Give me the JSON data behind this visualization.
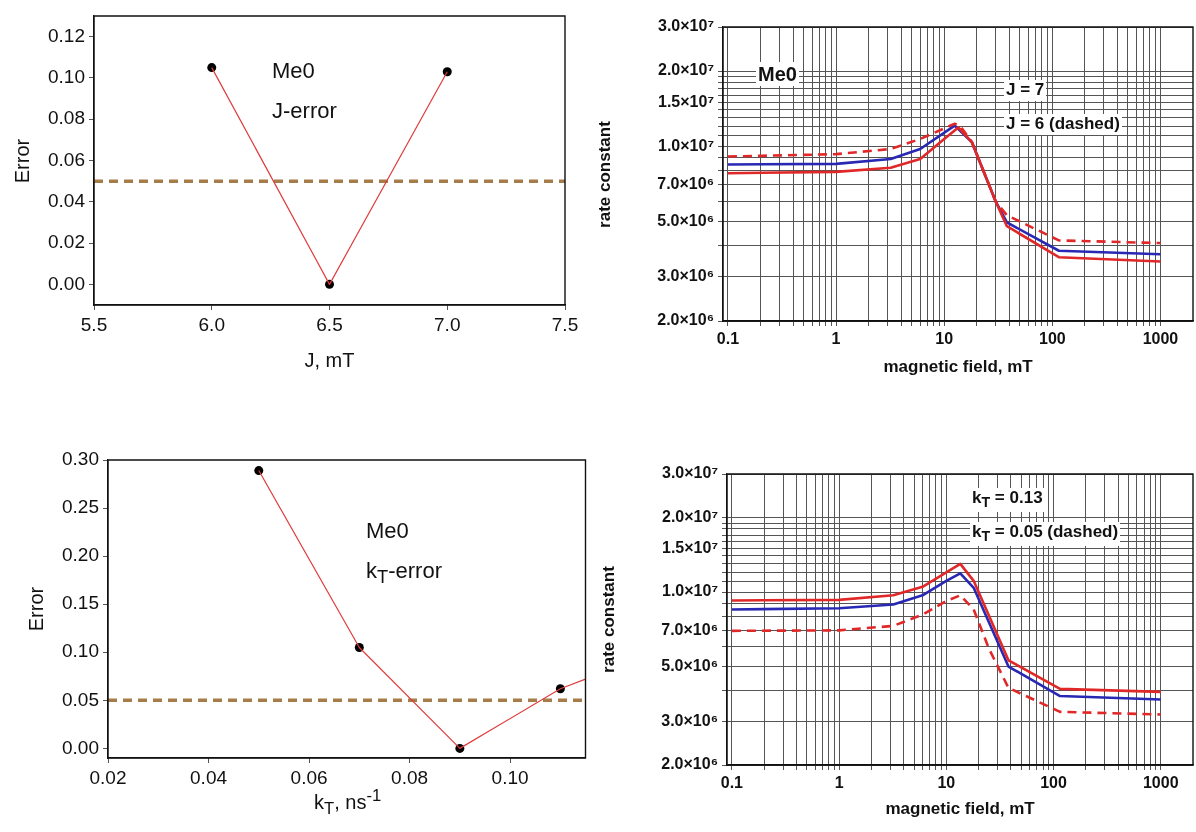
{
  "chart_data": [
    {
      "type": "line",
      "xlabel": "J, mT",
      "ylabel": "Error",
      "annotations": [
        "Me0",
        "J-error"
      ],
      "xlim": [
        5.5,
        7.5
      ],
      "xticks": [
        {
          "value": 5.5,
          "label": "5.5"
        },
        {
          "value": 6,
          "label": "6.0"
        },
        {
          "value": 6.5,
          "label": "6.5"
        },
        {
          "value": 7,
          "label": "7.0"
        },
        {
          "value": 7.5,
          "label": "7.5"
        }
      ],
      "ylim": [
        -0.01,
        0.13
      ],
      "yticks": [
        {
          "value": 0,
          "label": "0.00"
        },
        {
          "value": 0.02,
          "label": "0.02"
        },
        {
          "value": 0.04,
          "label": "0.04"
        },
        {
          "value": 0.06,
          "label": "0.06"
        },
        {
          "value": 0.08,
          "label": "0.08"
        },
        {
          "value": 0.1,
          "label": "0.10"
        },
        {
          "value": 0.12,
          "label": "0.12"
        }
      ],
      "series": [
        {
          "type": "line",
          "color": "#e03c3c",
          "marker": "none",
          "x": [
            6,
            6.5,
            7
          ],
          "values": [
            0.105,
            0,
            0.103
          ]
        },
        {
          "type": "scatter",
          "color": "#000000",
          "marker": "circle",
          "x": [
            6,
            6.5,
            7
          ],
          "values": [
            0.105,
            0,
            0.103
          ]
        }
      ],
      "ref_lines": [
        {
          "axis": "y",
          "value": 0.05,
          "color": "#a57c4a",
          "line_style": "dashed"
        }
      ]
    },
    {
      "type": "line",
      "xlabel": "magnetic field, mT",
      "ylabel": "rate constant",
      "annotations": [
        "Me0",
        "J = 7",
        "J = 6 (dashed)"
      ],
      "log": "xy",
      "grid": true,
      "xlim": [
        0.09,
        2000
      ],
      "xticks": [
        0.1,
        {
          "value": 0.2,
          "label": null
        },
        {
          "value": 0.3,
          "label": null
        },
        {
          "value": 0.4,
          "label": null
        },
        {
          "value": 0.5,
          "label": null
        },
        {
          "value": 0.6,
          "label": null
        },
        {
          "value": 0.7,
          "label": null
        },
        {
          "value": 0.8,
          "label": null
        },
        {
          "value": 0.9,
          "label": null
        },
        1,
        {
          "value": 2,
          "label": null
        },
        {
          "value": 3,
          "label": null
        },
        {
          "value": 4,
          "label": null
        },
        {
          "value": 5,
          "label": null
        },
        {
          "value": 6,
          "label": null
        },
        {
          "value": 7,
          "label": null
        },
        {
          "value": 8,
          "label": null
        },
        {
          "value": 9,
          "label": null
        },
        10,
        {
          "value": 20,
          "label": null
        },
        {
          "value": 30,
          "label": null
        },
        {
          "value": 40,
          "label": null
        },
        {
          "value": 50,
          "label": null
        },
        {
          "value": 60,
          "label": null
        },
        {
          "value": 70,
          "label": null
        },
        {
          "value": 80,
          "label": null
        },
        {
          "value": 90,
          "label": null
        },
        100,
        {
          "value": 200,
          "label": null
        },
        {
          "value": 300,
          "label": null
        },
        {
          "value": 400,
          "label": null
        },
        {
          "value": 500,
          "label": null
        },
        {
          "value": 600,
          "label": null
        },
        {
          "value": 700,
          "label": null
        },
        {
          "value": 800,
          "label": null
        },
        {
          "value": 900,
          "label": null
        },
        1000
      ],
      "ylim": [
        2000000,
        30000000
      ],
      "yticks": [
        {
          "value": 2000000,
          "label": "2.0×10⁶"
        },
        {
          "value": 3000000,
          "label": "3.0×10⁶"
        },
        {
          "value": 4000000,
          "label": null
        },
        {
          "value": 5000000,
          "label": "5.0×10⁶"
        },
        {
          "value": 6000000,
          "label": null
        },
        {
          "value": 7000000,
          "label": "7.0×10⁶"
        },
        {
          "value": 8000000,
          "label": null
        },
        {
          "value": 9000000,
          "label": null
        },
        {
          "value": 10000000,
          "label": "1.0×10⁷"
        },
        {
          "value": 11000000,
          "label": null
        },
        {
          "value": 12000000,
          "label": null
        },
        {
          "value": 13000000,
          "label": null
        },
        {
          "value": 14000000,
          "label": null
        },
        {
          "value": 15000000,
          "label": "1.5×10⁷"
        },
        {
          "value": 16000000,
          "label": null
        },
        {
          "value": 17000000,
          "label": null
        },
        {
          "value": 18000000,
          "label": null
        },
        {
          "value": 19000000,
          "label": null
        },
        {
          "value": 20000000,
          "label": "2.0×10⁷"
        },
        {
          "value": 30000000,
          "label": "3.0×10⁷"
        }
      ],
      "series": [
        {
          "type": "line",
          "color": "#e02828",
          "line_style": "dashed",
          "x": [
            0.1,
            1,
            3.2,
            6,
            12.5,
            14,
            18,
            30,
            38,
            115,
            1000
          ],
          "values": [
            9100000,
            9300000,
            9750000,
            10700000,
            12300000,
            12100000,
            10400000,
            6000000,
            5300000,
            4200000,
            4100000
          ]
        },
        {
          "type": "line",
          "color": "#e02828",
          "x": [
            0.1,
            1,
            3.2,
            6,
            10,
            13.5,
            18,
            30,
            38,
            115,
            1000
          ],
          "values": [
            7800000,
            7900000,
            8200000,
            8900000,
            10700000,
            11900000,
            10400000,
            6000000,
            4790000,
            3600000,
            3460000
          ]
        },
        {
          "type": "line",
          "color": "#2828b4",
          "x": [
            0.1,
            1,
            3.2,
            6,
            12.5,
            18,
            30,
            38,
            115,
            1000
          ],
          "values": [
            8460000,
            8500000,
            8900000,
            9750000,
            12100000,
            10400000,
            6000000,
            4960000,
            3820000,
            3700000
          ]
        }
      ]
    },
    {
      "type": "line",
      "xlabel": "k$_{T}$, ns$^{-1}$",
      "ylabel": "Error",
      "annotations": [
        "Me0",
        "k$_{T}$-error"
      ],
      "xlim": [
        0.02,
        0.115
      ],
      "xticks": [
        {
          "value": 0.02,
          "label": "0.02"
        },
        {
          "value": 0.04,
          "label": "0.04"
        },
        {
          "value": 0.06,
          "label": "0.06"
        },
        {
          "value": 0.08,
          "label": "0.08"
        },
        {
          "value": 0.1,
          "label": "0.10"
        }
      ],
      "ylim": [
        -0.01,
        0.3
      ],
      "yticks": [
        {
          "value": 0,
          "label": "0.00"
        },
        {
          "value": 0.05,
          "label": "0.05"
        },
        {
          "value": 0.1,
          "label": "0.10"
        },
        {
          "value": 0.15,
          "label": "0.15"
        },
        {
          "value": 0.2,
          "label": "0.20"
        },
        {
          "value": 0.25,
          "label": "0.25"
        },
        {
          "value": 0.3,
          "label": "0.30"
        }
      ],
      "series": [
        {
          "type": "line",
          "color": "#e03c3c",
          "marker": "none",
          "x": [
            0.05,
            0.07,
            0.09,
            0.11,
            0.115
          ],
          "values": [
            0.289,
            0.105,
            0,
            0.062,
            0.072
          ]
        },
        {
          "type": "scatter",
          "color": "#000000",
          "marker": "circle",
          "x": [
            0.05,
            0.07,
            0.09,
            0.11
          ],
          "values": [
            0.289,
            0.105,
            0,
            0.062
          ]
        }
      ],
      "ref_lines": [
        {
          "axis": "y",
          "value": 0.05,
          "color": "#a57c4a",
          "line_style": "dashed"
        }
      ]
    },
    {
      "type": "line",
      "xlabel": "magnetic field, mT",
      "ylabel": "rate constant",
      "annotations": [
        "k$_{T}$ = 0.13",
        "k$_{T}$ = 0.05 (dashed)"
      ],
      "log": "xy",
      "grid": true,
      "xlim": [
        0.09,
        2000
      ],
      "xticks": [
        0.1,
        {
          "value": 0.2,
          "label": null
        },
        {
          "value": 0.3,
          "label": null
        },
        {
          "value": 0.4,
          "label": null
        },
        {
          "value": 0.5,
          "label": null
        },
        {
          "value": 0.6,
          "label": null
        },
        {
          "value": 0.7,
          "label": null
        },
        {
          "value": 0.8,
          "label": null
        },
        {
          "value": 0.9,
          "label": null
        },
        1,
        {
          "value": 2,
          "label": null
        },
        {
          "value": 3,
          "label": null
        },
        {
          "value": 4,
          "label": null
        },
        {
          "value": 5,
          "label": null
        },
        {
          "value": 6,
          "label": null
        },
        {
          "value": 7,
          "label": null
        },
        {
          "value": 8,
          "label": null
        },
        {
          "value": 9,
          "label": null
        },
        10,
        {
          "value": 20,
          "label": null
        },
        {
          "value": 30,
          "label": null
        },
        {
          "value": 40,
          "label": null
        },
        {
          "value": 50,
          "label": null
        },
        {
          "value": 60,
          "label": null
        },
        {
          "value": 70,
          "label": null
        },
        {
          "value": 80,
          "label": null
        },
        {
          "value": 90,
          "label": null
        },
        100,
        {
          "value": 200,
          "label": null
        },
        {
          "value": 300,
          "label": null
        },
        {
          "value": 400,
          "label": null
        },
        {
          "value": 500,
          "label": null
        },
        {
          "value": 600,
          "label": null
        },
        {
          "value": 700,
          "label": null
        },
        {
          "value": 800,
          "label": null
        },
        {
          "value": 900,
          "label": null
        },
        1000
      ],
      "ylim": [
        2000000,
        30000000
      ],
      "yticks": [
        {
          "value": 2000000,
          "label": "2.0×10⁶"
        },
        {
          "value": 3000000,
          "label": "3.0×10⁶"
        },
        {
          "value": 4000000,
          "label": null
        },
        {
          "value": 5000000,
          "label": "5.0×10⁶"
        },
        {
          "value": 6000000,
          "label": null
        },
        {
          "value": 7000000,
          "label": "7.0×10⁶"
        },
        {
          "value": 8000000,
          "label": null
        },
        {
          "value": 9000000,
          "label": null
        },
        {
          "value": 10000000,
          "label": "1.0×10⁷"
        },
        {
          "value": 11000000,
          "label": null
        },
        {
          "value": 12000000,
          "label": null
        },
        {
          "value": 13000000,
          "label": null
        },
        {
          "value": 14000000,
          "label": null
        },
        {
          "value": 15000000,
          "label": "1.5×10⁷"
        },
        {
          "value": 16000000,
          "label": null
        },
        {
          "value": 17000000,
          "label": null
        },
        {
          "value": 18000000,
          "label": null
        },
        {
          "value": 19000000,
          "label": null
        },
        {
          "value": 20000000,
          "label": "2.0×10⁷"
        },
        {
          "value": 30000000,
          "label": "3.0×10⁷"
        }
      ],
      "series": [
        {
          "type": "line",
          "color": "#e02828",
          "line_style": "dashed",
          "x": [
            0.1,
            1,
            3.2,
            6,
            10,
            13.5,
            18,
            25,
            38,
            115,
            1000
          ],
          "values": [
            6970000,
            7000000,
            7300000,
            8100000,
            9200000,
            9700000,
            8500000,
            5900000,
            4100000,
            3280000,
            3200000
          ]
        },
        {
          "type": "line",
          "color": "#e02828",
          "x": [
            0.1,
            1,
            3.2,
            6,
            10,
            13.5,
            18,
            38,
            115,
            1000
          ],
          "values": [
            9250000,
            9300000,
            9700000,
            10500000,
            12000000,
            13000000,
            11100000,
            5300000,
            4060000,
            3950000
          ]
        },
        {
          "type": "line",
          "color": "#2828b4",
          "x": [
            0.1,
            1,
            3.2,
            6,
            10,
            13.5,
            18,
            38,
            115,
            1000
          ],
          "values": [
            8500000,
            8600000,
            8900000,
            9700000,
            11100000,
            11900000,
            10400000,
            5000000,
            3800000,
            3680000
          ]
        }
      ]
    }
  ]
}
